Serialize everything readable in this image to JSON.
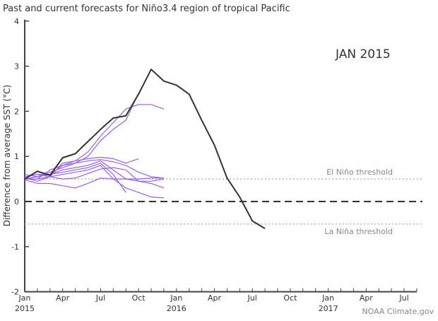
{
  "chart_data": {
    "type": "line",
    "title": "Past and current forecasts for Niño3.4 region of tropical Pacific",
    "annotation": "JAN 2015",
    "credit": "NOAA Climate.gov",
    "ylabel": "Difference from average SST (°C)",
    "xlabel": "",
    "ylim": [
      -2,
      4
    ],
    "yticks": [
      "-2",
      "-1",
      "0",
      "1",
      "2",
      "3",
      "4"
    ],
    "xticks": [
      {
        "m": 0,
        "label": "Jan",
        "year": "2015"
      },
      {
        "m": 3,
        "label": "Apr"
      },
      {
        "m": 6,
        "label": "Jul"
      },
      {
        "m": 9,
        "label": "Oct"
      },
      {
        "m": 12,
        "label": "Jan",
        "year": "2016"
      },
      {
        "m": 15,
        "label": "Apr"
      },
      {
        "m": 18,
        "label": "Jul"
      },
      {
        "m": 21,
        "label": "Oct"
      },
      {
        "m": 24,
        "label": "Jan",
        "year": "2017"
      },
      {
        "m": 27,
        "label": "Apr"
      },
      {
        "m": 30,
        "label": "Jul"
      }
    ],
    "xrange_months_from_jan2015": [
      0,
      31
    ],
    "thresholds": [
      {
        "label": "El Niño threshold",
        "value": 0.5
      },
      {
        "label": "La Niña threshold",
        "value": -0.5
      }
    ],
    "colors": {
      "observed": "#333333",
      "forecasts": "#9b5ff0",
      "threshold": "#aaaaaa"
    },
    "observed": {
      "start": "Jan 2015",
      "values": [
        0.5,
        0.67,
        0.58,
        0.97,
        1.06,
        1.33,
        1.6,
        1.85,
        1.9,
        2.38,
        2.93,
        2.67,
        2.58,
        2.38,
        1.8,
        1.25,
        0.52,
        0.1,
        -0.43,
        -0.6
      ]
    },
    "forecasts": [
      {
        "start": "Jan 2015",
        "values": [
          0.55,
          0.6,
          0.6,
          0.8,
          0.9,
          1.1,
          1.45,
          1.75,
          2.05,
          2.15,
          2.15,
          2.05
        ]
      },
      {
        "start": "Jan 2015",
        "values": [
          0.5,
          0.55,
          0.65,
          0.75,
          0.85,
          1.0,
          1.35,
          1.6,
          1.8,
          2.4
        ]
      },
      {
        "start": "Jan 2015",
        "values": [
          0.55,
          0.6,
          0.55,
          0.85,
          0.9,
          0.95,
          0.98,
          0.95,
          0.85,
          0.95
        ]
      },
      {
        "start": "Jan 2015",
        "values": [
          0.5,
          0.5,
          0.7,
          0.8,
          0.85,
          0.9,
          0.93,
          0.88,
          0.8,
          0.65,
          0.55,
          0.52
        ]
      },
      {
        "start": "Jan 2015",
        "values": [
          0.6,
          0.55,
          0.6,
          0.7,
          0.75,
          0.8,
          0.9,
          0.7,
          0.5,
          0.45,
          0.4,
          0.3
        ]
      },
      {
        "start": "Jan 2015",
        "values": [
          0.5,
          0.55,
          0.6,
          0.65,
          0.7,
          0.75,
          0.85,
          0.6,
          0.2
        ]
      },
      {
        "start": "Jan 2015",
        "values": [
          0.5,
          0.5,
          0.55,
          0.6,
          0.65,
          0.7,
          0.8,
          0.5,
          0.3,
          0.2,
          0.1,
          0.08
        ]
      },
      {
        "start": "Jan 2015",
        "values": [
          0.48,
          0.4,
          0.4,
          0.35,
          0.3,
          0.4,
          0.52,
          0.5,
          0.5,
          0.5,
          0.52,
          0.52
        ]
      },
      {
        "start": "Jan 2015",
        "values": [
          0.52,
          0.45,
          0.55,
          0.5,
          0.52,
          0.62,
          0.72,
          0.75,
          0.7,
          0.45,
          0.45,
          0.5
        ]
      }
    ]
  }
}
